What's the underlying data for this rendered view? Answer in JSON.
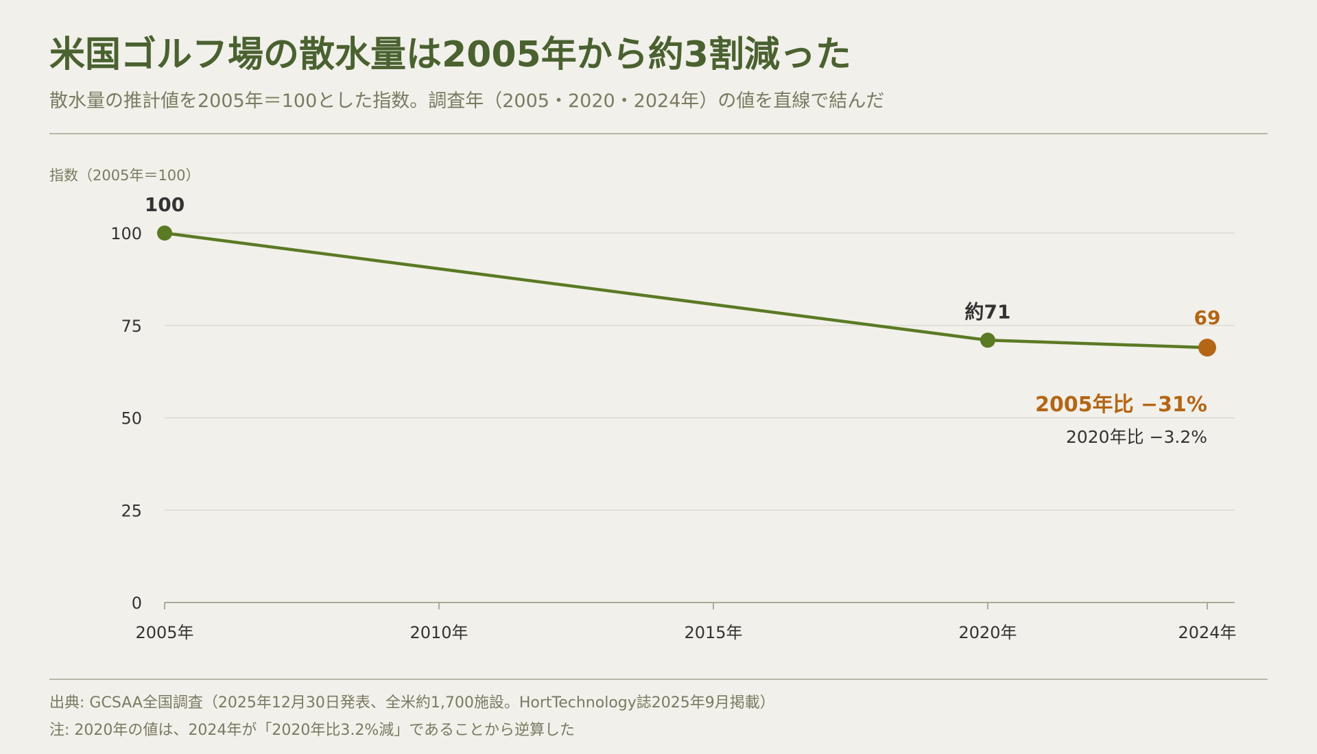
{
  "header": {
    "title": "米国ゴルフ場の散水量は2005年から約3割減った",
    "subtitle": "散水量の推計値を2005年＝100とした指数。調査年（2005・2020・2024年）の値を直線で結んだ"
  },
  "colors": {
    "line": "#5a7a24",
    "highlight": "#b36614",
    "text": "#333333",
    "muted": "#7a7a62",
    "grid": "#dcdbd2",
    "axis": "#a8ad98"
  },
  "chart_data": {
    "type": "line",
    "ylabel": "指数（2005年＝100）",
    "ylim": [
      0,
      100
    ],
    "xlim": [
      2005,
      2024
    ],
    "yticks": [
      {
        "value": 0,
        "label": "0"
      },
      {
        "value": 25,
        "label": "25"
      },
      {
        "value": 50,
        "label": "50"
      },
      {
        "value": 75,
        "label": "75"
      },
      {
        "value": 100,
        "label": "100"
      }
    ],
    "xticks": [
      {
        "value": 2005,
        "label": "2005年"
      },
      {
        "value": 2010,
        "label": "2010年"
      },
      {
        "value": 2015,
        "label": "2015年"
      },
      {
        "value": 2020,
        "label": "2020年"
      },
      {
        "value": 2024,
        "label": "2024年"
      }
    ],
    "grid": true,
    "series": [
      {
        "points": [
          {
            "x": 2005,
            "y": 100,
            "label": "100",
            "highlight": false
          },
          {
            "x": 2020,
            "y": 71,
            "label": "約71",
            "highlight": false
          },
          {
            "x": 2024,
            "y": 69,
            "label": "69",
            "highlight": true
          }
        ]
      }
    ],
    "annotations": [
      {
        "text": "2005年比 −31%",
        "emphasis": true
      },
      {
        "text": "2020年比 −3.2%",
        "emphasis": false
      }
    ]
  },
  "footer": {
    "source": "出典: GCSAA全国調査（2025年12月30日発表、全米約1,700施設。HortTechnology誌2025年9月掲載）",
    "note": "注: 2020年の値は、2024年が「2020年比3.2%減」であることから逆算した"
  }
}
